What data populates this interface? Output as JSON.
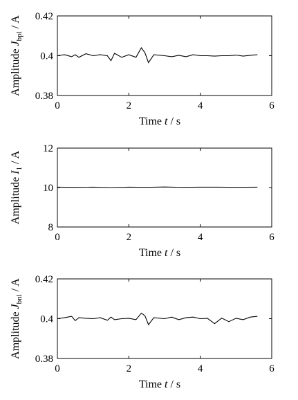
{
  "chart_data": [
    {
      "type": "line",
      "xlabel": {
        "prefix": "Time ",
        "var": "t",
        "suffix": " / s"
      },
      "ylabel": {
        "prefix": "Amplitude ",
        "var": "J",
        "sub": "bpl",
        "suffix": " / A"
      },
      "xlim": [
        0,
        6
      ],
      "ylim": [
        0.38,
        0.42
      ],
      "xticks": [
        "0",
        "2",
        "4",
        "6"
      ],
      "yticks": [
        "0.38",
        "0.4",
        "0.42"
      ],
      "ytick_values": [
        0.38,
        0.4,
        0.42
      ],
      "xtick_values": [
        0,
        2,
        4,
        6
      ],
      "series": [
        {
          "x": [
            0.0,
            0.2,
            0.4,
            0.5,
            0.6,
            0.8,
            1.0,
            1.2,
            1.4,
            1.5,
            1.6,
            1.8,
            2.0,
            2.2,
            2.35,
            2.45,
            2.55,
            2.7,
            3.0,
            3.2,
            3.4,
            3.6,
            3.8,
            4.0,
            4.2,
            4.4,
            4.6,
            4.8,
            5.0,
            5.2,
            5.4,
            5.6
          ],
          "y": [
            0.4,
            0.4005,
            0.3995,
            0.4005,
            0.3992,
            0.401,
            0.4,
            0.4005,
            0.4,
            0.3975,
            0.4012,
            0.3992,
            0.4005,
            0.3992,
            0.404,
            0.4015,
            0.3965,
            0.4005,
            0.4,
            0.3995,
            0.4002,
            0.3995,
            0.4005,
            0.4,
            0.4,
            0.3998,
            0.4,
            0.4,
            0.4003,
            0.3998,
            0.4002,
            0.4005
          ]
        }
      ]
    },
    {
      "type": "line",
      "xlabel": {
        "prefix": "Time ",
        "var": "t",
        "suffix": " / s"
      },
      "ylabel": {
        "prefix": "Amplitude ",
        "var": "I",
        "sub": "1",
        "suffix": " / A"
      },
      "xlim": [
        0,
        6
      ],
      "ylim": [
        8,
        12
      ],
      "xticks": [
        "0",
        "2",
        "4",
        "6"
      ],
      "yticks": [
        "8",
        "10",
        "12"
      ],
      "ytick_values": [
        8,
        10,
        12
      ],
      "xtick_values": [
        0,
        2,
        4,
        6
      ],
      "series": [
        {
          "x": [
            0.0,
            0.5,
            1.0,
            1.5,
            2.0,
            2.5,
            3.0,
            3.5,
            4.0,
            4.5,
            5.0,
            5.6
          ],
          "y": [
            10.02,
            10.01,
            10.02,
            10.0,
            10.02,
            10.01,
            10.03,
            10.01,
            10.02,
            10.02,
            10.01,
            10.02
          ]
        }
      ]
    },
    {
      "type": "line",
      "xlabel": {
        "prefix": "Time ",
        "var": "t",
        "suffix": " / s"
      },
      "ylabel": {
        "prefix": "Amplitude ",
        "var": "J",
        "sub": "bnl",
        "suffix": " / A"
      },
      "xlim": [
        0,
        6
      ],
      "ylim": [
        0.38,
        0.42
      ],
      "xticks": [
        "0",
        "2",
        "4",
        "6"
      ],
      "yticks": [
        "0.38",
        "0.4",
        "0.42"
      ],
      "ytick_values": [
        0.38,
        0.4,
        0.42
      ],
      "xtick_values": [
        0,
        2,
        4,
        6
      ],
      "series": [
        {
          "x": [
            0.0,
            0.2,
            0.4,
            0.5,
            0.6,
            0.8,
            1.0,
            1.2,
            1.4,
            1.5,
            1.6,
            1.8,
            2.0,
            2.2,
            2.35,
            2.45,
            2.55,
            2.7,
            3.0,
            3.2,
            3.4,
            3.6,
            3.8,
            4.0,
            4.2,
            4.4,
            4.6,
            4.8,
            5.0,
            5.2,
            5.4,
            5.6
          ],
          "y": [
            0.4,
            0.4005,
            0.4012,
            0.399,
            0.4005,
            0.4002,
            0.4,
            0.4005,
            0.3992,
            0.4008,
            0.3995,
            0.4,
            0.4002,
            0.3995,
            0.4028,
            0.4015,
            0.397,
            0.4005,
            0.4,
            0.4008,
            0.3995,
            0.4005,
            0.4008,
            0.4,
            0.4002,
            0.3975,
            0.4003,
            0.3985,
            0.4002,
            0.3995,
            0.4008,
            0.4012
          ]
        }
      ]
    }
  ]
}
